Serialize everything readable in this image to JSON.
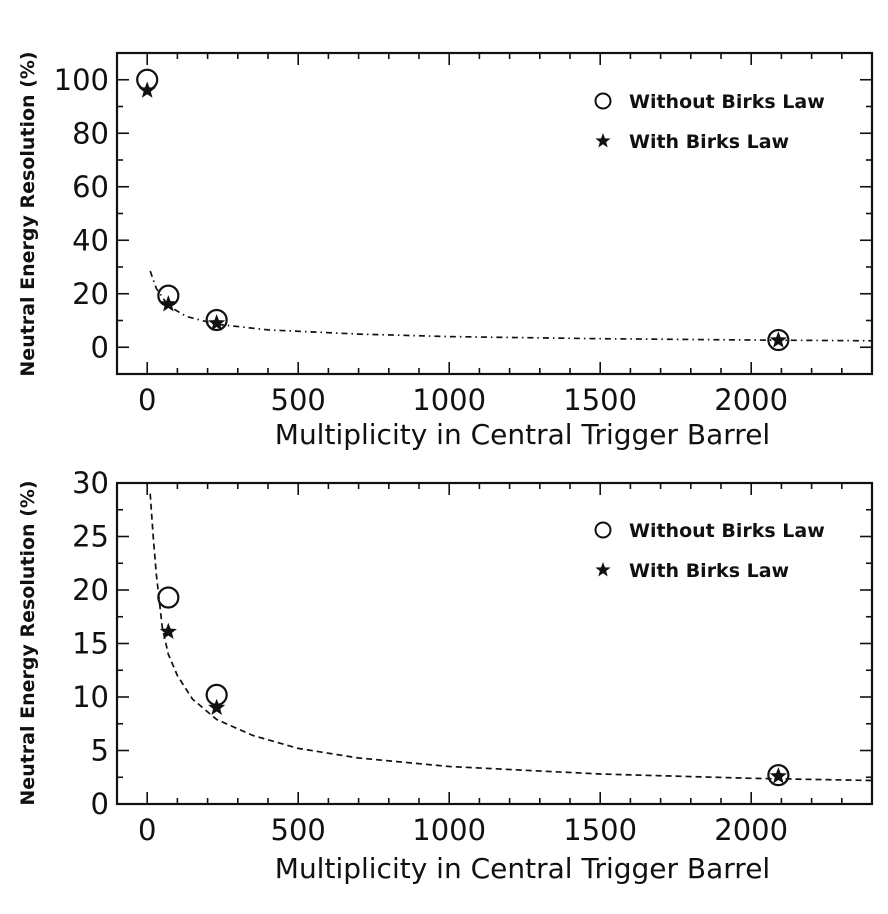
{
  "chart_data": [
    {
      "type": "scatter",
      "xlabel": "Multiplicity in Central Trigger Barrel",
      "ylabel": "Neutral Energy Resolution (%)",
      "xlim": [
        -100,
        2400
      ],
      "ylim": [
        -10,
        110
      ],
      "x_ticks": [
        0,
        500,
        1000,
        1500,
        2000
      ],
      "y_ticks": [
        0,
        20,
        40,
        60,
        80,
        100
      ],
      "legend": {
        "position": "top-right"
      },
      "series": [
        {
          "name": "Without Birks Law",
          "marker": "open-circle",
          "x": [
            0,
            70,
            230,
            2090
          ],
          "y": [
            100,
            19.3,
            10.2,
            2.7
          ]
        },
        {
          "name": "With Birks Law",
          "marker": "star",
          "x": [
            0,
            70,
            230,
            2090
          ],
          "y": [
            96,
            16.1,
            9.0,
            2.6
          ]
        }
      ],
      "fit_curve": {
        "style": "dash-dot",
        "x": [
          10,
          30,
          70,
          130,
          230,
          400,
          700,
          1000,
          1500,
          2000,
          2400
        ],
        "y": [
          28.5,
          22,
          15.5,
          11.5,
          8.6,
          6.5,
          4.9,
          4.0,
          3.2,
          2.7,
          2.4
        ]
      }
    },
    {
      "type": "scatter",
      "xlabel": "Multiplicity in Central Trigger Barrel",
      "ylabel": "Neutral Energy Resolution (%)",
      "xlim": [
        -100,
        2400
      ],
      "ylim": [
        0,
        30
      ],
      "x_ticks": [
        0,
        500,
        1000,
        1500,
        2000
      ],
      "y_ticks": [
        0,
        5,
        10,
        15,
        20,
        25,
        30
      ],
      "legend": {
        "position": "top-right"
      },
      "series": [
        {
          "name": "Without Birks Law",
          "marker": "open-circle",
          "x": [
            70,
            230,
            2090
          ],
          "y": [
            19.3,
            10.2,
            2.7
          ]
        },
        {
          "name": "With Birks Law",
          "marker": "star",
          "x": [
            70,
            230,
            2090
          ],
          "y": [
            16.1,
            9.0,
            2.6
          ]
        }
      ],
      "fit_curve": {
        "style": "dashed",
        "x": [
          10,
          20,
          30,
          50,
          70,
          100,
          150,
          230,
          350,
          500,
          700,
          1000,
          1500,
          2000,
          2400
        ],
        "y": [
          29,
          25,
          21.5,
          16.5,
          14,
          12,
          9.8,
          7.9,
          6.4,
          5.2,
          4.3,
          3.5,
          2.8,
          2.4,
          2.2
        ]
      }
    }
  ]
}
